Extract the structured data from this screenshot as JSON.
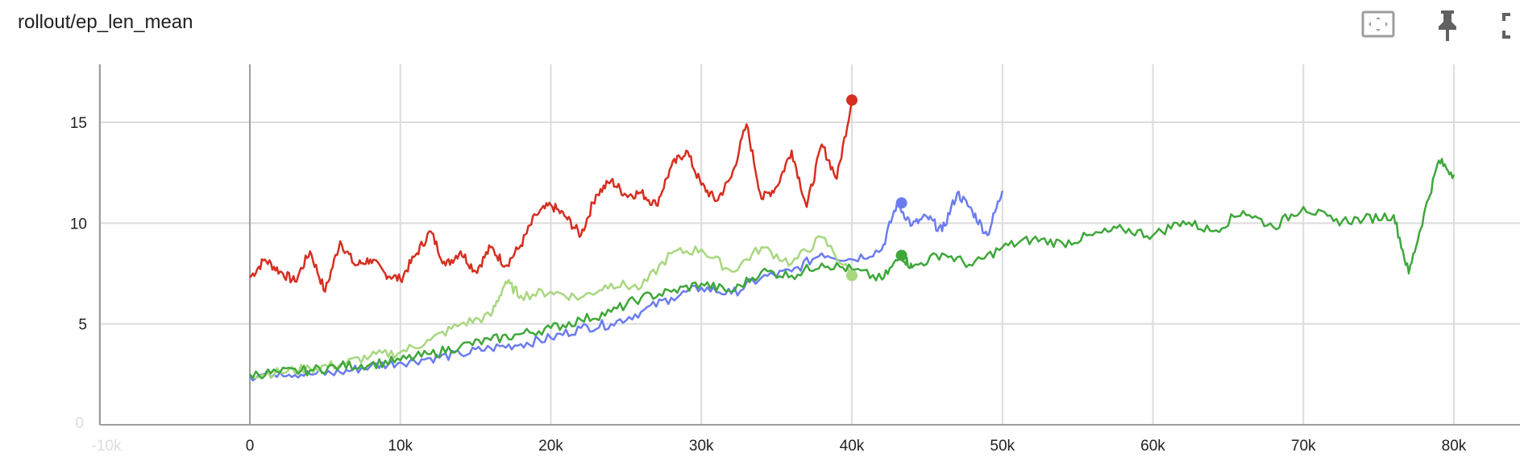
{
  "card": {
    "title": "rollout/ep_len_mean",
    "toolbar": [
      {
        "name": "fit-domain-icon"
      },
      {
        "name": "pin-icon"
      },
      {
        "name": "fullscreen-icon"
      }
    ]
  },
  "chart_data": {
    "type": "line",
    "title": "rollout/ep_len_mean",
    "xlabel": "",
    "ylabel": "",
    "xlim": [
      -10000,
      86000
    ],
    "ylim": [
      0,
      18
    ],
    "x_ticks": [
      0,
      10000,
      20000,
      30000,
      40000,
      50000,
      60000,
      70000,
      80000
    ],
    "x_tick_labels": [
      "0",
      "10k",
      "20k",
      "30k",
      "40k",
      "50k",
      "60k",
      "70k",
      "80k"
    ],
    "y_ticks": [
      5,
      10,
      15
    ],
    "y_tick_labels": [
      "5",
      "10",
      "15"
    ],
    "grid": true,
    "legend": "none",
    "series": [
      {
        "color": "#d62e20",
        "x": [
          0,
          1000,
          2000,
          3000,
          4000,
          5000,
          6000,
          7000,
          8000,
          9000,
          10000,
          11000,
          12000,
          13000,
          14000,
          15000,
          16000,
          17000,
          18000,
          19000,
          20000,
          21000,
          22000,
          23000,
          24000,
          25000,
          26000,
          27000,
          28000,
          29000,
          30000,
          31000,
          32000,
          33000,
          34000,
          35000,
          36000,
          37000,
          38000,
          39000,
          40000
        ],
        "y": [
          7.3,
          8.2,
          7.6,
          7.1,
          8.6,
          6.6,
          9.1,
          7.9,
          8.2,
          7.5,
          7.2,
          8.4,
          9.6,
          7.9,
          8.6,
          7.6,
          8.8,
          7.9,
          8.9,
          10.4,
          10.9,
          10.3,
          9.4,
          11.4,
          12.1,
          11.4,
          11.5,
          10.9,
          12.8,
          13.6,
          11.9,
          11.1,
          12.3,
          14.9,
          11.2,
          11.8,
          13.6,
          10.8,
          13.9,
          12.2,
          16.1
        ],
        "end_marker": true
      },
      {
        "color": "#6b7cf0",
        "x": [
          0,
          2000,
          4000,
          6000,
          8000,
          10000,
          12000,
          14000,
          16000,
          18000,
          20000,
          22000,
          24000,
          26000,
          28000,
          30000,
          32000,
          34000,
          36000,
          38000,
          40000,
          42000,
          43000,
          44000,
          45000,
          46000,
          47000,
          48000,
          49000,
          50000
        ],
        "y": [
          2.4,
          2.6,
          2.5,
          2.6,
          2.9,
          3.1,
          3.3,
          3.5,
          3.8,
          4.0,
          4.3,
          4.8,
          5.0,
          5.6,
          6.3,
          6.8,
          6.5,
          7.3,
          7.6,
          8.5,
          8.2,
          8.7,
          11.0,
          9.9,
          10.3,
          9.6,
          11.5,
          10.6,
          9.4,
          11.6
        ],
        "end_marker_at": [
          43300,
          11.0
        ]
      },
      {
        "color": "#a8d77f",
        "x": [
          0,
          2000,
          4000,
          6000,
          8000,
          10000,
          12000,
          14000,
          16000,
          17000,
          18000,
          20000,
          22000,
          24000,
          26000,
          28000,
          30000,
          32000,
          34000,
          36000,
          38000,
          40000
        ],
        "y": [
          2.5,
          2.6,
          2.8,
          3.0,
          3.4,
          3.6,
          4.2,
          5.0,
          5.4,
          7.1,
          6.4,
          6.6,
          6.3,
          7.0,
          6.8,
          8.5,
          8.7,
          7.6,
          8.8,
          8.0,
          9.3,
          7.4
        ],
        "end_marker": true
      },
      {
        "color": "#3fa73a",
        "x": [
          0,
          2000,
          4000,
          6000,
          8000,
          10000,
          12000,
          14000,
          16000,
          18000,
          20000,
          22000,
          24000,
          26000,
          28000,
          30000,
          32000,
          34000,
          36000,
          38000,
          40000,
          42000,
          43300,
          44000,
          46000,
          48000,
          50000,
          52000,
          54000,
          56000,
          58000,
          60000,
          62000,
          64000,
          66000,
          68000,
          70000,
          72000,
          74000,
          76000,
          77000,
          78000,
          79000,
          80000
        ],
        "y": [
          2.5,
          2.6,
          2.7,
          2.9,
          3.0,
          3.2,
          3.5,
          3.9,
          4.2,
          4.5,
          4.8,
          5.2,
          5.6,
          6.3,
          6.6,
          7.0,
          6.6,
          7.6,
          7.4,
          8.0,
          7.7,
          7.2,
          8.4,
          7.8,
          8.5,
          7.9,
          8.8,
          9.2,
          9.0,
          9.4,
          9.7,
          9.4,
          10.1,
          9.6,
          10.6,
          9.8,
          10.8,
          10.1,
          10.2,
          10.4,
          7.5,
          10.4,
          13.1,
          12.4
        ],
        "end_marker_at": [
          43300,
          8.4
        ]
      }
    ]
  }
}
